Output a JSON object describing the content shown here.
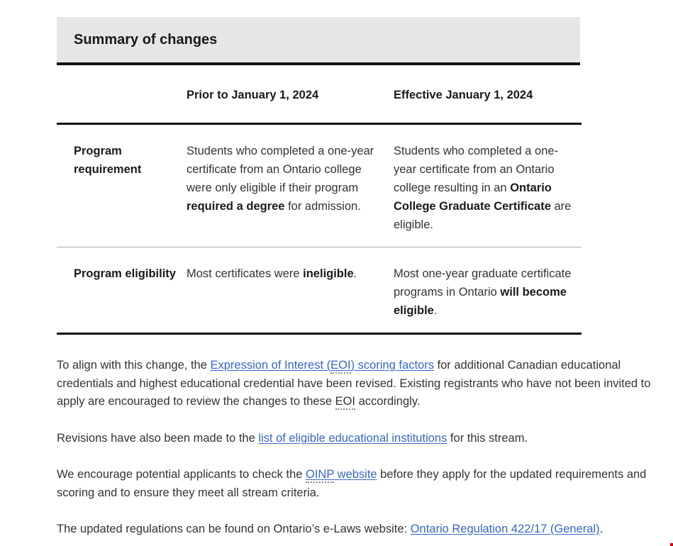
{
  "title": "Summary of changes",
  "colors": {
    "link_blue": "#3566c9",
    "header_bg": "#e6e6e6",
    "border_dark": "#141414",
    "row_divider": "#b2b2b2",
    "artifact_red": "#cc0000"
  },
  "table": {
    "headers": [
      "Prior to January 1, 2024",
      "Effective January 1, 2024"
    ],
    "rows": [
      {
        "label": "Program requirement",
        "prior": [
          {
            "t": "Students who completed a one-year certificate from an Ontario college were only eligible if their program "
          },
          {
            "t": "required a degree",
            "b": true
          },
          {
            "t": " for admission."
          }
        ],
        "effective": [
          {
            "t": "Students who completed a one-year certificate from an Ontario college resulting in an "
          },
          {
            "t": "Ontario College Graduate Certificate",
            "b": true
          },
          {
            "t": " are eligible."
          }
        ]
      },
      {
        "label": "Program eligibility",
        "prior": [
          {
            "t": "Most certificates were "
          },
          {
            "t": "ineligible",
            "b": true
          },
          {
            "t": "."
          }
        ],
        "effective": [
          {
            "t": "Most one-year graduate certificate programs in Ontario "
          },
          {
            "t": "will become eligible",
            "b": true
          },
          {
            "t": "."
          }
        ]
      }
    ]
  },
  "paragraphs": {
    "p1": [
      {
        "t": "To align with this change, the "
      },
      {
        "t": "Expression of Interest (",
        "l": true,
        "n": "eoi-scoring-factors-link"
      },
      {
        "t": "EOI",
        "l": true,
        "a": true,
        "n": "eoi-scoring-factors-link"
      },
      {
        "t": ") scoring factors",
        "l": true,
        "n": "eoi-scoring-factors-link"
      },
      {
        "t": " for additional Canadian educational credentials and highest educational credential have been revised. Existing registrants who have not been invited to apply are encouraged to review the changes to these "
      },
      {
        "t": "EOI",
        "a": true,
        "n": "eoi-abbr"
      },
      {
        "t": " accordingly."
      }
    ],
    "p2": [
      {
        "t": "Revisions have also been made to the "
      },
      {
        "t": "list of eligible educational institutions",
        "l": true,
        "n": "eligible-institutions-link"
      },
      {
        "t": " for this stream."
      }
    ],
    "p3": [
      {
        "t": "We encourage potential applicants to check the "
      },
      {
        "t": "OINP",
        "l": true,
        "a": true,
        "n": "oinp-website-link"
      },
      {
        "t": " website",
        "l": true,
        "n": "oinp-website-link"
      },
      {
        "t": " before they apply for the updated requirements and scoring and to ensure they meet all stream criteria."
      }
    ],
    "p4": [
      {
        "t": "The updated regulations can be found on Ontario’s e-Laws website: "
      },
      {
        "t": "Ontario Regulation 422/17 (General)",
        "l": true,
        "n": "ontario-regulation-link"
      },
      {
        "t": "."
      }
    ]
  }
}
